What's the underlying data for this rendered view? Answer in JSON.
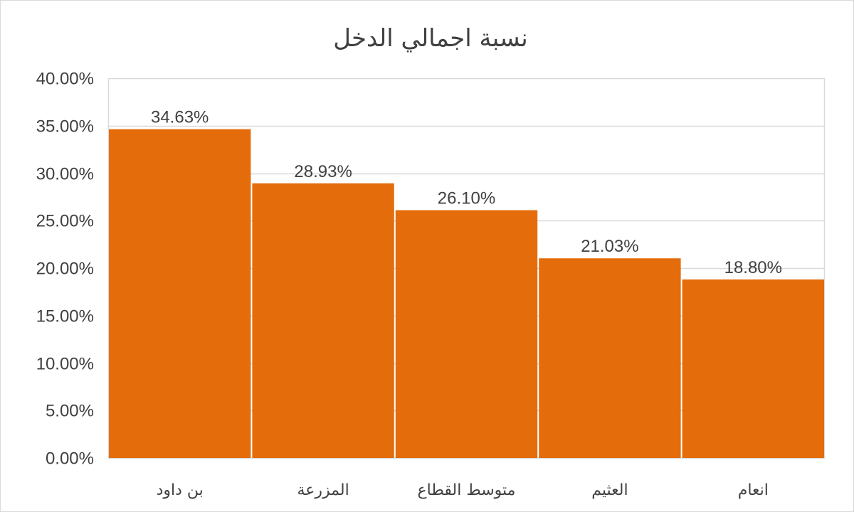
{
  "chart_data": {
    "type": "bar",
    "title": "نسبة اجمالي الدخل",
    "xlabel": "",
    "ylabel": "",
    "categories": [
      "بن داود",
      "المزرعة",
      "متوسط القطاع",
      "العثيم",
      "انعام"
    ],
    "values": [
      34.63,
      28.93,
      26.1,
      21.03,
      18.8
    ],
    "data_labels": [
      "34.63%",
      "28.93%",
      "26.10%",
      "21.03%",
      "18.80%"
    ],
    "ylim": [
      0,
      40
    ],
    "y_ticks": [
      0,
      5,
      10,
      15,
      20,
      25,
      30,
      35,
      40
    ],
    "y_tick_labels": [
      "0.00%",
      "5.00%",
      "10.00%",
      "15.00%",
      "20.00%",
      "25.00%",
      "30.00%",
      "35.00%",
      "40.00%"
    ],
    "grid": true,
    "legend": "none",
    "bar_color": "#e46c0a",
    "gridline_color": "#d9d9d9",
    "text_color": "#404040"
  }
}
